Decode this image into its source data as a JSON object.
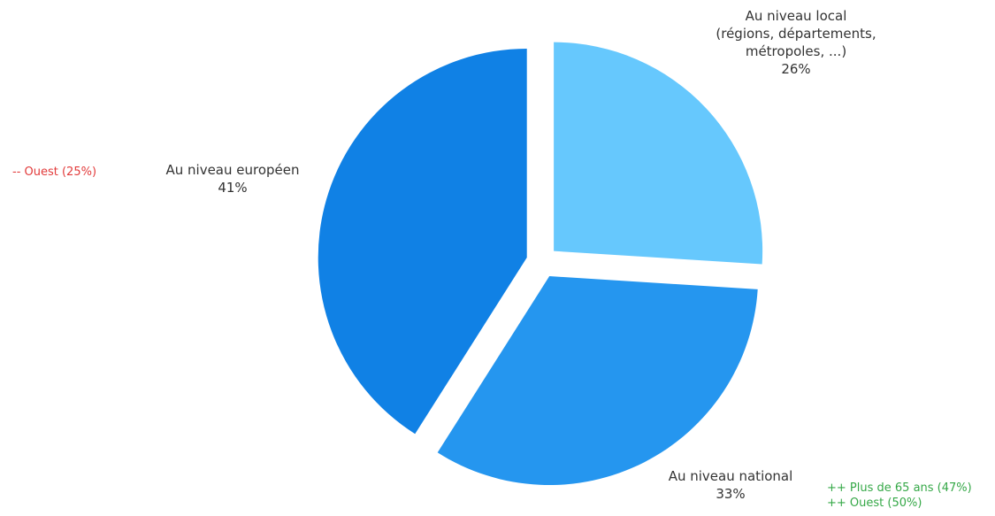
{
  "chart_data": {
    "type": "pie",
    "slices": [
      {
        "label_lines": [
          "Au niveau local",
          "(régions, départements,",
          "métropoles, ...)"
        ],
        "value": 26,
        "value_label": "26%",
        "color": "#66c8fd"
      },
      {
        "label_lines": [
          "Au niveau national"
        ],
        "value": 33,
        "value_label": "33%",
        "color": "#2596ef"
      },
      {
        "label_lines": [
          "Au niveau européen"
        ],
        "value": 41,
        "value_label": "41%",
        "color": "#1081e5"
      }
    ],
    "annotations": [
      {
        "slice": 2,
        "lines": [
          "-- Ouest (25%)"
        ],
        "color": "#e23b3b"
      },
      {
        "slice": 1,
        "lines": [
          "++ Plus de 65 ans (47%)",
          "++ Ouest (50%)"
        ],
        "color": "#35a847"
      }
    ]
  }
}
